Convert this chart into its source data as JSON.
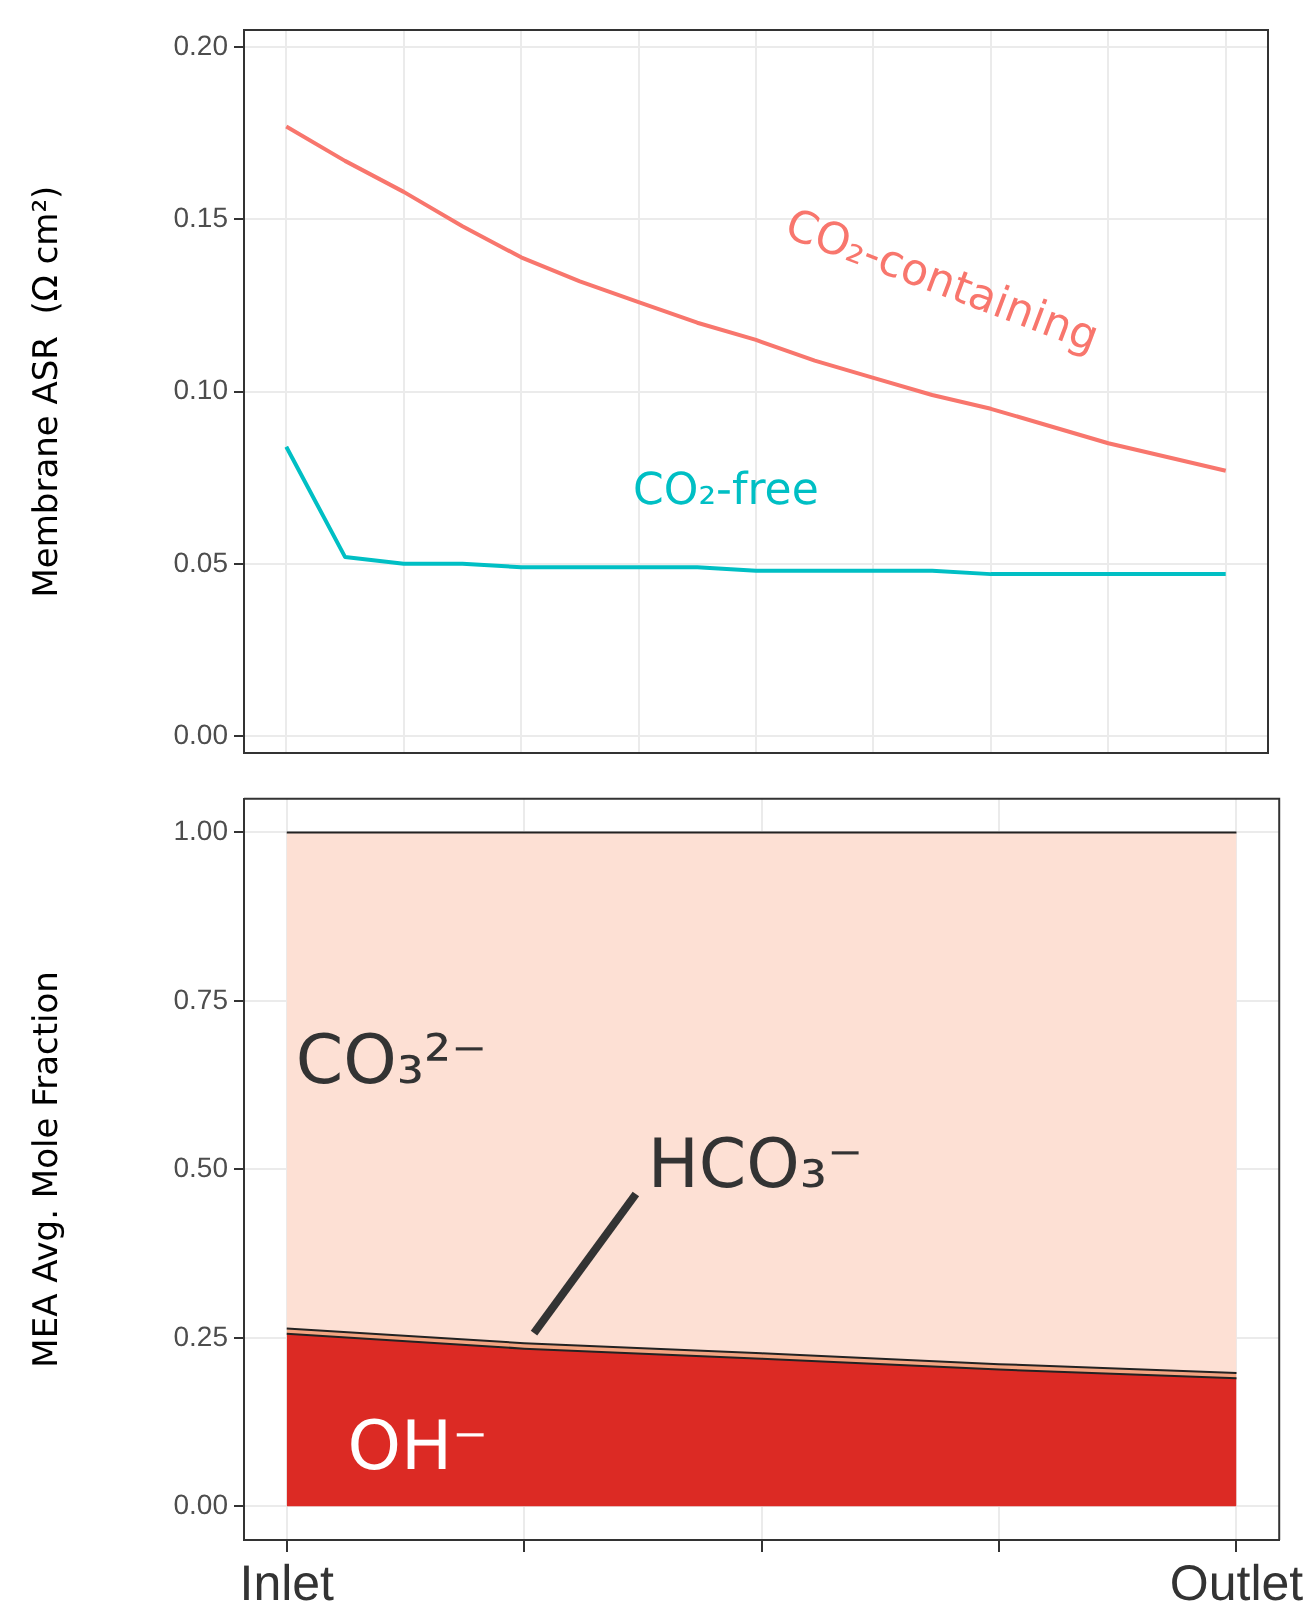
{
  "chart_data": [
    {
      "type": "line",
      "ylabel": "Membrane ASR  (Ω cm²)",
      "categories": [
        null,
        null,
        null,
        null,
        null,
        null,
        null,
        null,
        null,
        null,
        null,
        null,
        null,
        null,
        null,
        null,
        null
      ],
      "ylim": [
        -0.005,
        0.205
      ],
      "yticks": [
        {
          "value": 0,
          "label": "0.00"
        },
        {
          "value": 0.05,
          "label": "0.05"
        },
        {
          "value": 0.1,
          "label": "0.10"
        },
        {
          "value": 0.15,
          "label": "0.15"
        },
        {
          "value": 0.2,
          "label": "0.20"
        }
      ],
      "grid": true,
      "tick_labels": "y",
      "series": [
        {
          "name": "CO₂-containing",
          "color": "#f8766d",
          "values": [
            0.177,
            0.167,
            0.158,
            0.148,
            0.139,
            0.132,
            0.126,
            0.12,
            0.115,
            0.109,
            0.104,
            0.099,
            0.095,
            0.09,
            0.085,
            0.081,
            0.077
          ]
        },
        {
          "name": "CO₂-free",
          "color": "#00bfc4",
          "values": [
            0.084,
            0.052,
            0.05,
            0.05,
            0.049,
            0.049,
            0.049,
            0.049,
            0.048,
            0.048,
            0.048,
            0.048,
            0.047,
            0.047,
            0.047,
            0.047,
            0.047
          ]
        }
      ]
    },
    {
      "type": "area",
      "ylabel": "MEA Avg. Mole Fraction",
      "categories": [
        "Inlet",
        null,
        null,
        null,
        "Outlet"
      ],
      "ylim": [
        -0.05,
        1.05
      ],
      "yticks": [
        {
          "value": 0,
          "label": "0.00"
        },
        {
          "value": 0.25,
          "label": "0.25"
        },
        {
          "value": 0.5,
          "label": "0.50"
        },
        {
          "value": 0.75,
          "label": "0.75"
        },
        {
          "value": 1,
          "label": "1.00"
        }
      ],
      "grid": true,
      "stacked": true,
      "series": [
        {
          "name": "OH⁻",
          "color": "#dc2a24",
          "values": [
            0.256,
            0.234,
            0.219,
            0.203,
            0.19
          ]
        },
        {
          "name": "HCO₃⁻",
          "color": "#f4a582",
          "values": [
            0.008,
            0.008,
            0.008,
            0.008,
            0.008
          ]
        },
        {
          "name": "CO₃²⁻",
          "color": "#fde0d4",
          "values": [
            0.736,
            0.758,
            0.773,
            0.789,
            0.802
          ]
        }
      ]
    }
  ]
}
